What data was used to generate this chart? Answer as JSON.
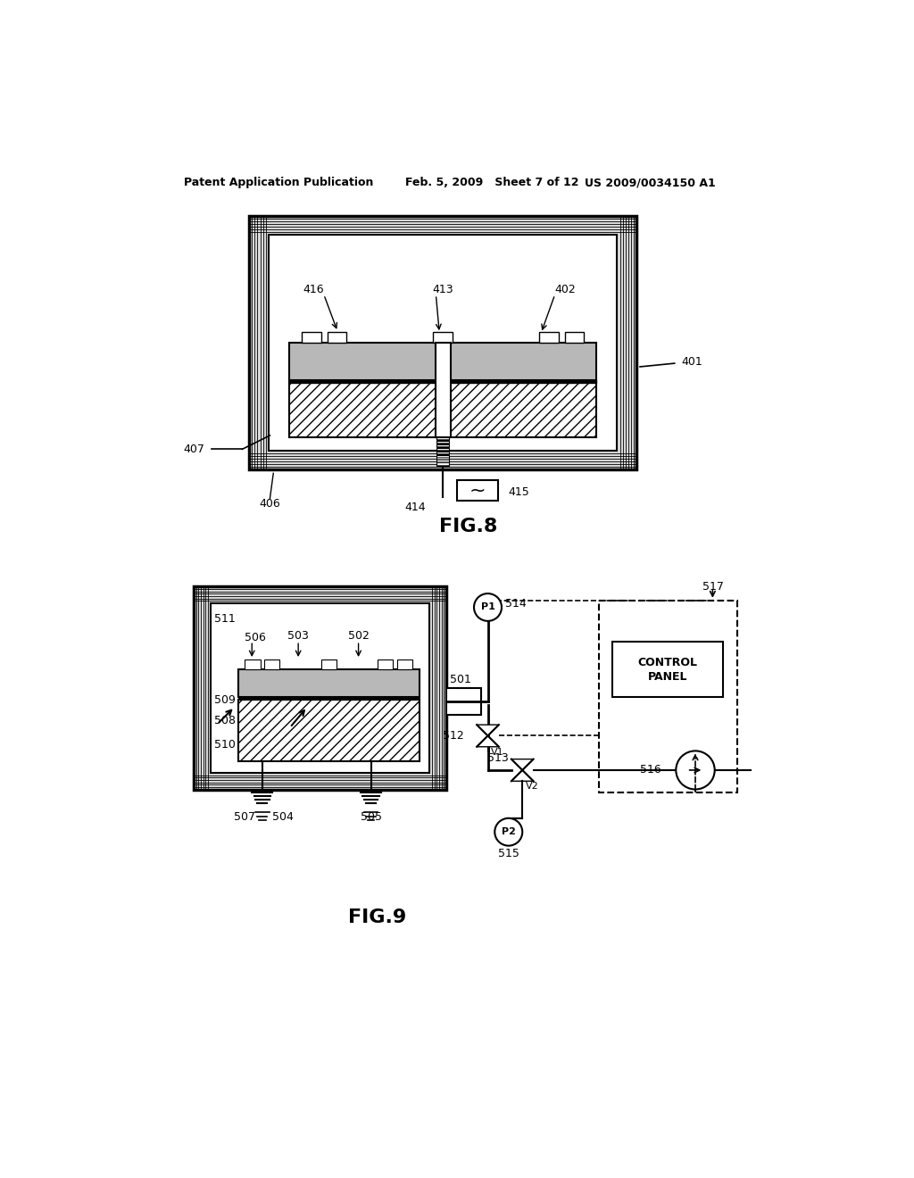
{
  "background_color": "#ffffff",
  "header_left": "Patent Application Publication",
  "header_mid": "Feb. 5, 2009   Sheet 7 of 12",
  "header_right": "US 2009/0034150 A1",
  "fig8_label": "FIG.8",
  "fig9_label": "FIG.9"
}
